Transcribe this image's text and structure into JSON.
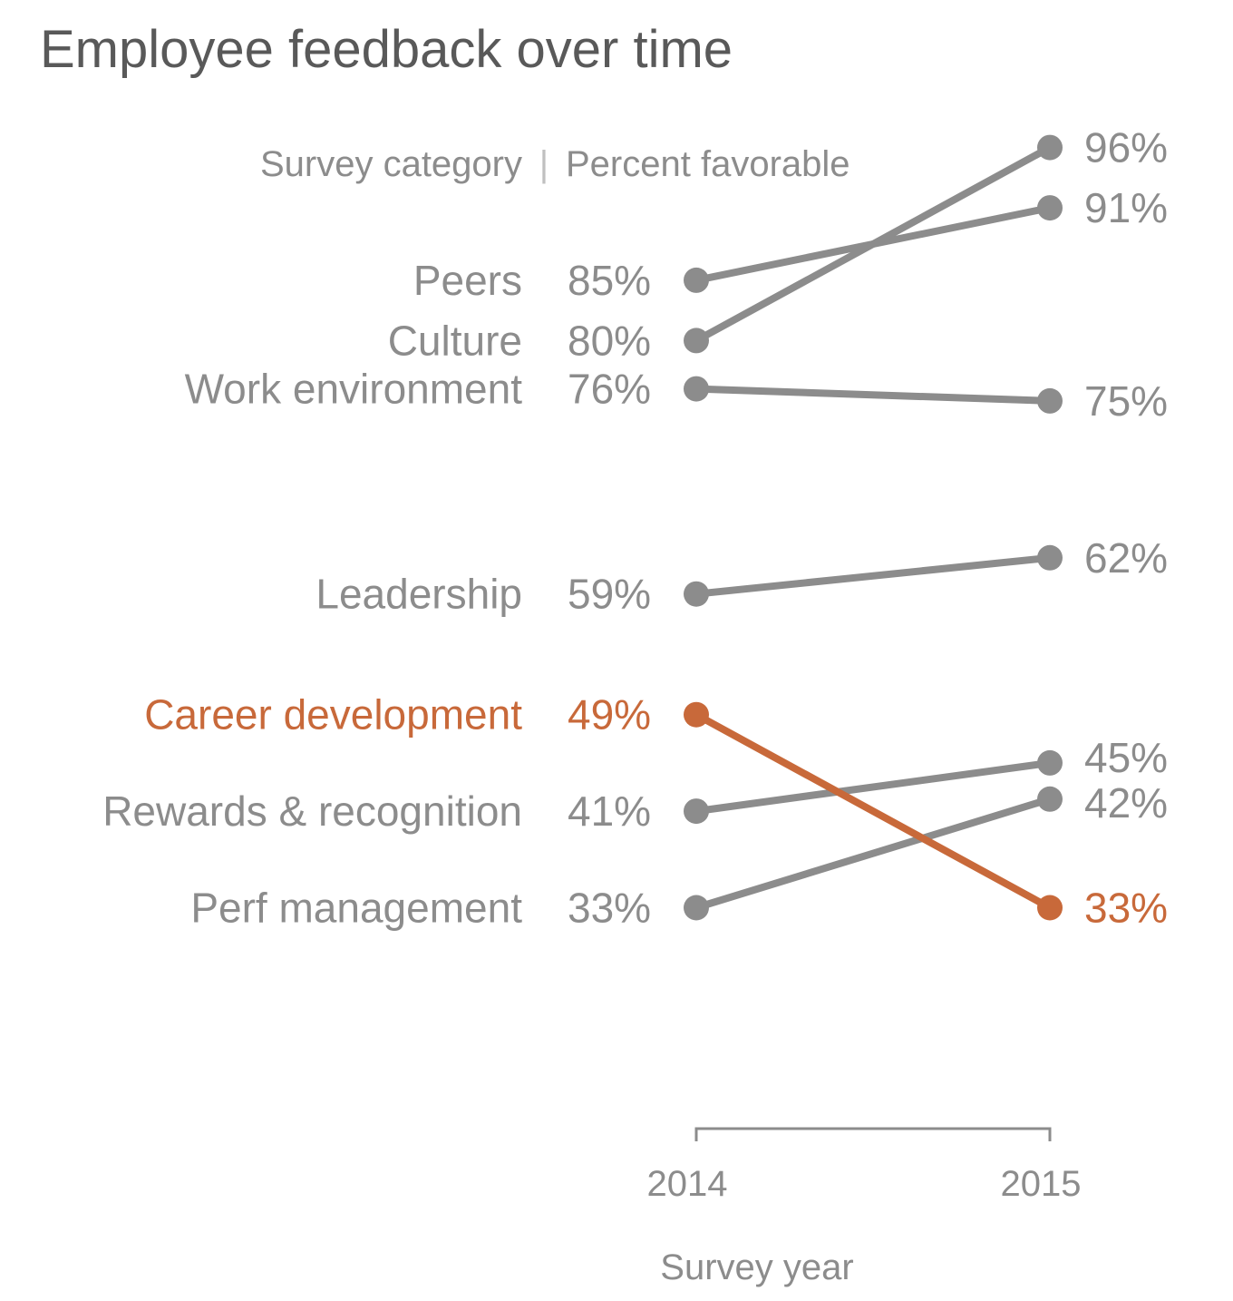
{
  "chart_data": {
    "type": "line",
    "title": "Employee feedback over time",
    "subtitle_left": "Survey category",
    "subtitle_separator": "|",
    "subtitle_right": "Percent favorable",
    "xlabel": "Survey year",
    "categories": [
      "2014",
      "2015"
    ],
    "series": [
      {
        "name": "Peers",
        "values": [
          85,
          91
        ],
        "labels": [
          "85%",
          "91%"
        ],
        "highlight": false
      },
      {
        "name": "Culture",
        "values": [
          80,
          96
        ],
        "labels": [
          "80%",
          "96%"
        ],
        "highlight": false
      },
      {
        "name": "Work environment",
        "values": [
          76,
          75
        ],
        "labels": [
          "76%",
          "75%"
        ],
        "highlight": false
      },
      {
        "name": "Leadership",
        "values": [
          59,
          62
        ],
        "labels": [
          "59%",
          "62%"
        ],
        "highlight": false
      },
      {
        "name": "Career development",
        "values": [
          49,
          33
        ],
        "labels": [
          "49%",
          "33%"
        ],
        "highlight": true
      },
      {
        "name": "Rewards & recognition",
        "values": [
          41,
          45
        ],
        "labels": [
          "41%",
          "45%"
        ],
        "highlight": false
      },
      {
        "name": "Perf management",
        "values": [
          33,
          42
        ],
        "labels": [
          "33%",
          "42%"
        ],
        "highlight": false
      }
    ],
    "colors": {
      "default": "#8c8c8c",
      "highlight": "#c8693a",
      "title": "#595959"
    }
  }
}
